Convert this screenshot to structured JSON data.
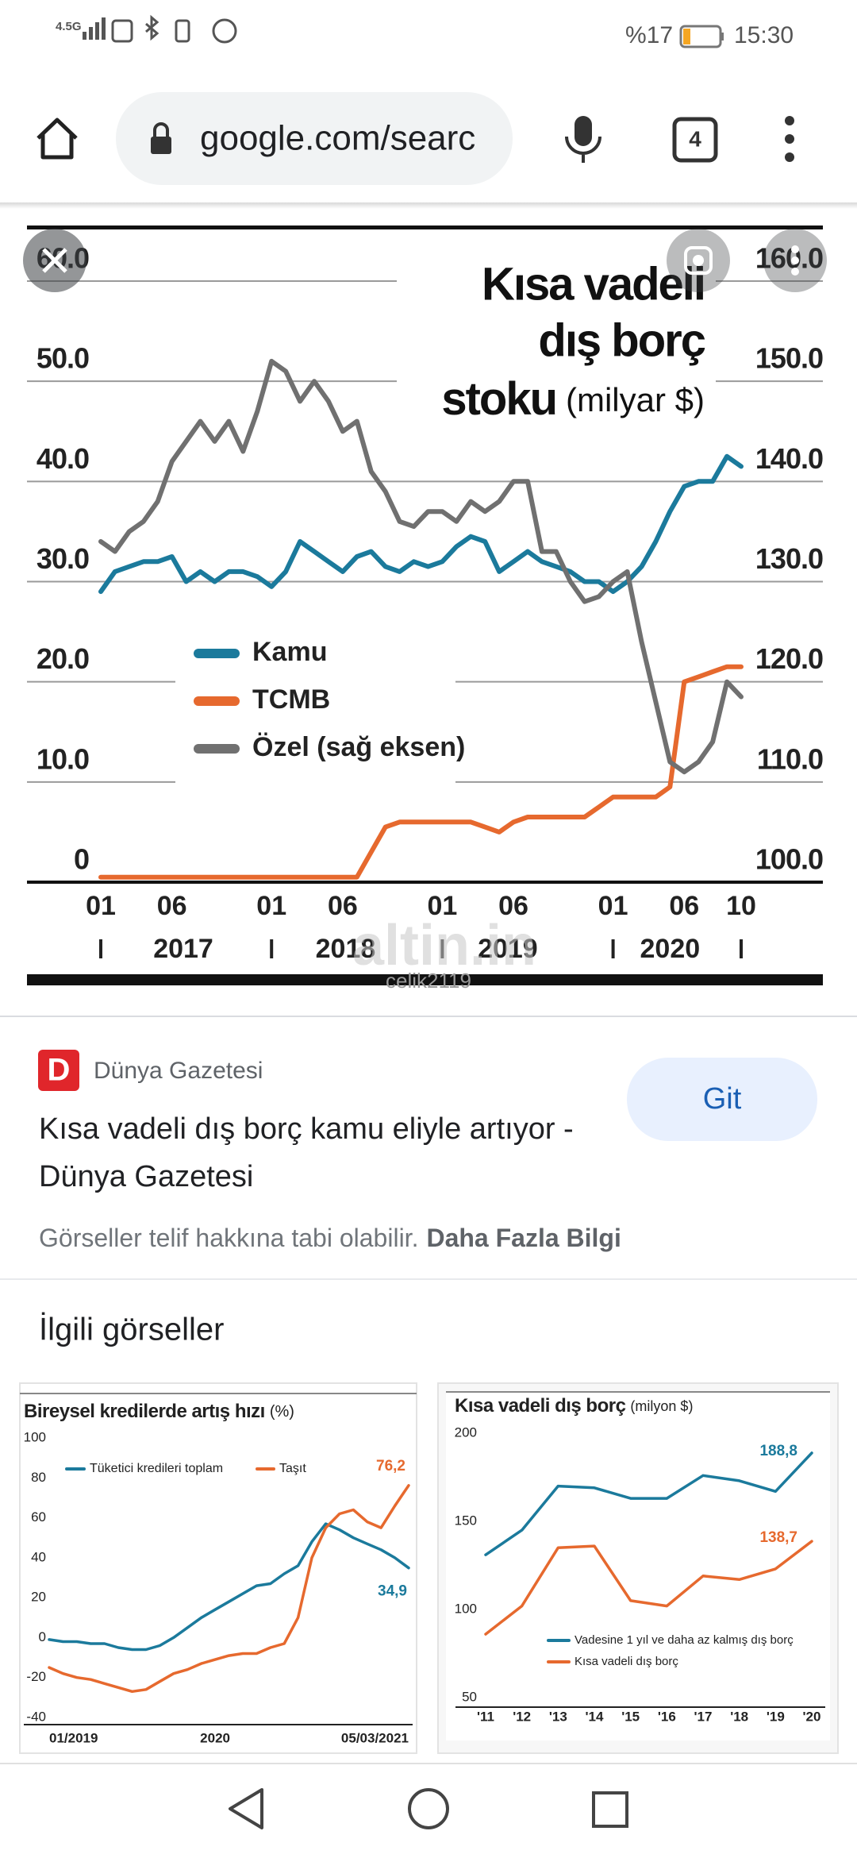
{
  "status_bar": {
    "network": "4.5G",
    "battery": "%17",
    "time": "15:30"
  },
  "url_bar": {
    "url": "google.com/searc",
    "tab_count": "4"
  },
  "image_viewer": {
    "chart_data": {
      "type": "line",
      "title_lines": [
        "Kısa vadeli",
        "dış borç",
        "stoku"
      ],
      "unit": "(milyar $)",
      "watermark": "altin.in",
      "watermark_user": "celik2119",
      "categories": [
        "01",
        null,
        null,
        null,
        null,
        "06",
        null,
        null,
        null,
        null,
        null,
        null,
        "01",
        null,
        null,
        null,
        null,
        "06",
        null,
        null,
        null,
        null,
        null,
        null,
        "01",
        null,
        null,
        null,
        null,
        "06",
        null,
        null,
        null,
        null,
        null,
        null,
        "01",
        null,
        null,
        null,
        null,
        "06",
        null,
        null,
        null,
        "10"
      ],
      "year_labels": [
        "2017",
        "2018",
        "2019",
        "2020"
      ],
      "ylim": [
        0,
        60
      ],
      "yticks": [
        0,
        {
          "value": 10,
          "label": "10.0"
        },
        {
          "value": 20,
          "label": "20.0"
        },
        {
          "value": 30,
          "label": "30.0"
        },
        {
          "value": 40,
          "label": "40.0"
        },
        {
          "value": 50,
          "label": "50.0"
        },
        {
          "value": 60,
          "label": "60.0"
        }
      ],
      "y2lim": [
        100,
        160
      ],
      "y2ticks": [
        {
          "value": 100,
          "label": "100.0"
        },
        {
          "value": 110,
          "label": "110.0"
        },
        {
          "value": 120,
          "label": "120.0"
        },
        {
          "value": 130,
          "label": "130.0"
        },
        {
          "value": 140,
          "label": "140.0"
        },
        {
          "value": 150,
          "label": "150.0"
        },
        {
          "value": 160,
          "label": "160.0"
        }
      ],
      "grid": true,
      "series": [
        {
          "name": "Kamu",
          "color": "#1b7a9c",
          "values": [
            29,
            31,
            31.5,
            32,
            32,
            32.5,
            30,
            31,
            30,
            31,
            31,
            30.5,
            29.5,
            31,
            34,
            33,
            32,
            31,
            32.5,
            33,
            31.5,
            31,
            32,
            31.5,
            32,
            33.5,
            34.5,
            34,
            31,
            32,
            33,
            32,
            31.5,
            31,
            30,
            30,
            29,
            30,
            31.5,
            34,
            37,
            39.5,
            40,
            40,
            42.5,
            41.5
          ]
        },
        {
          "name": "TCMB",
          "color": "#e6692e",
          "values": [
            0.5,
            0.5,
            0.5,
            0.5,
            0.5,
            0.5,
            0.5,
            0.5,
            0.5,
            0.5,
            0.5,
            0.5,
            0.5,
            0.5,
            0.5,
            0.5,
            0.5,
            0.5,
            0.5,
            3,
            5.5,
            6,
            6,
            6,
            6,
            6,
            6,
            5.5,
            5,
            6,
            6.5,
            6.5,
            6.5,
            6.5,
            6.5,
            7.5,
            8.5,
            8.5,
            8.5,
            8.5,
            9.5,
            20,
            20.5,
            21,
            21.5,
            21.5
          ]
        },
        {
          "name": "Özel (sağ eksen)",
          "color": "#707070",
          "axis": "y2",
          "values": [
            134,
            133,
            135,
            136,
            138,
            142,
            144,
            146,
            144,
            146,
            143,
            147,
            152,
            151,
            148,
            150,
            148,
            145,
            146,
            141,
            139,
            136,
            135.5,
            137,
            137,
            136,
            138,
            137,
            138,
            140,
            140,
            133,
            133,
            130,
            128,
            128.5,
            130,
            131,
            124,
            118,
            112,
            111,
            112,
            114,
            120,
            118.5
          ]
        }
      ]
    }
  },
  "result": {
    "logo": "D",
    "source": "Dünya Gazetesi",
    "button": "Git",
    "title": "Kısa vadeli dış borç kamu eliyle artıyor - Dünya Gazetesi",
    "notice": "Görseller telif hakkına tabi olabilir.",
    "notice_link": "Daha Fazla Bilgi"
  },
  "related": {
    "heading": "İlgili görseller",
    "charts": [
      {
        "type": "line",
        "title": "Bireysel kredilerde artış hızı",
        "unit": "(%)",
        "categories": [
          "01/2019",
          null,
          null,
          null,
          null,
          null,
          null,
          null,
          null,
          null,
          null,
          null,
          "2020",
          null,
          null,
          null,
          null,
          null,
          null,
          null,
          null,
          null,
          null,
          null,
          null,
          null,
          "05/03/2021"
        ],
        "ylim": [
          -40,
          100
        ],
        "yticks": [
          -40,
          -20,
          0,
          20,
          40,
          60,
          80,
          100
        ],
        "grid": false,
        "series": [
          {
            "name": "Tüketici kredileri toplam",
            "color": "#1b7a9c",
            "values": [
              -1,
              -2,
              -2,
              -3,
              -3,
              -5,
              -6,
              -6,
              -4,
              0,
              5,
              10,
              14,
              18,
              22,
              26,
              27,
              32,
              36,
              48,
              57,
              54,
              50,
              47,
              44,
              40,
              34.9
            ],
            "value_labels": [
              null,
              null,
              null,
              null,
              null,
              null,
              null,
              null,
              null,
              null,
              null,
              null,
              null,
              null,
              null,
              null,
              null,
              null,
              null,
              null,
              null,
              null,
              null,
              null,
              null,
              null,
              "34,9"
            ]
          },
          {
            "name": "Taşıt",
            "color": "#e6692e",
            "values": [
              -15,
              -18,
              -20,
              -21,
              -23,
              -25,
              -27,
              -26,
              -22,
              -18,
              -16,
              -13,
              -11,
              -9,
              -8,
              -8,
              -5,
              -3,
              10,
              40,
              55,
              62,
              64,
              58,
              55,
              66,
              76.2
            ],
            "value_labels": [
              null,
              null,
              null,
              null,
              null,
              null,
              null,
              null,
              null,
              null,
              null,
              null,
              null,
              null,
              null,
              null,
              null,
              null,
              null,
              null,
              null,
              null,
              null,
              null,
              null,
              null,
              "76,2"
            ]
          }
        ]
      },
      {
        "type": "line",
        "title": "Kısa vadeli dış borç",
        "unit": "(milyon $)",
        "categories": [
          "'11",
          "'12",
          "'13",
          "'14",
          "'15",
          "'16",
          "'17",
          "'18",
          "'19",
          "'20"
        ],
        "ylim": [
          50,
          200
        ],
        "yticks": [
          50,
          100,
          150,
          200
        ],
        "grid": false,
        "series": [
          {
            "name": "Vadesine 1 yıl ve daha az kalmış dış borç",
            "color": "#1b7a9c",
            "values": [
              131,
              145,
              170,
              169,
              163,
              163,
              176,
              173,
              167,
              188.8
            ],
            "value_labels": [
              null,
              null,
              null,
              null,
              null,
              null,
              null,
              null,
              null,
              "188,8"
            ]
          },
          {
            "name": "Kısa vadeli dış borç",
            "color": "#e6692e",
            "values": [
              86,
              102,
              135,
              136,
              105,
              102,
              119,
              117,
              123,
              138.7
            ],
            "value_labels": [
              null,
              null,
              null,
              null,
              null,
              null,
              null,
              null,
              null,
              "138,7"
            ]
          }
        ]
      }
    ]
  }
}
